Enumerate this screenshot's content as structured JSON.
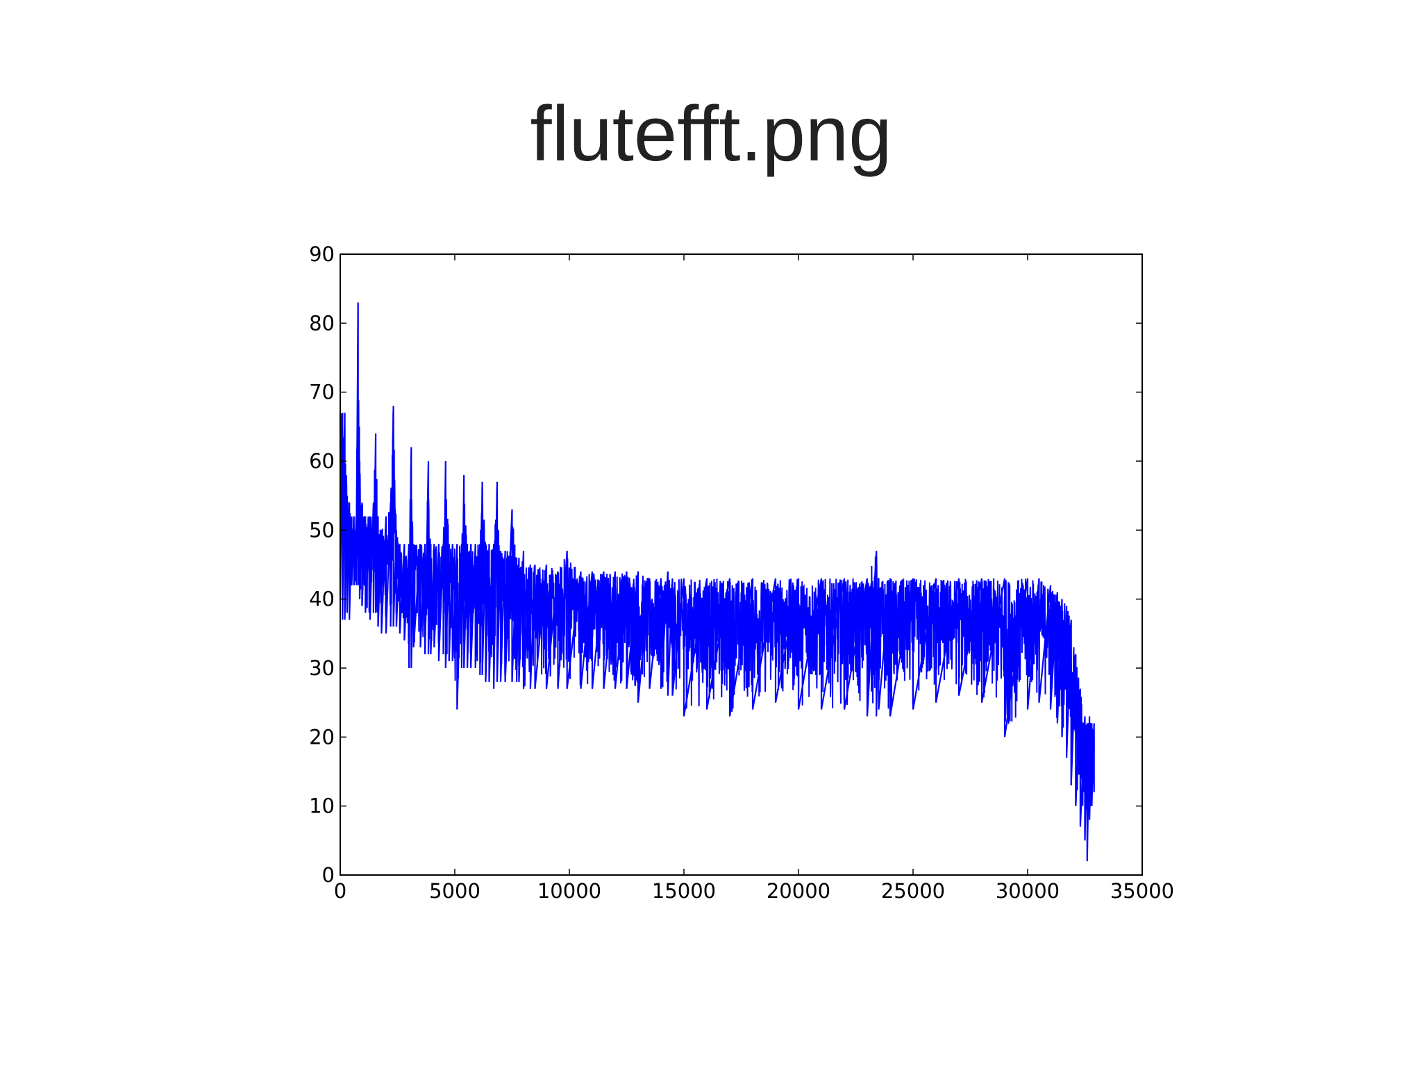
{
  "slide": {
    "title": "flutefft.png"
  },
  "chart_data": {
    "type": "line",
    "title": "",
    "xlabel": "",
    "ylabel": "",
    "xlim": [
      0,
      35000
    ],
    "ylim": [
      0,
      90
    ],
    "x_ticks": [
      0,
      5000,
      10000,
      15000,
      20000,
      25000,
      30000,
      35000
    ],
    "x_tick_labels": [
      "0",
      "5000",
      "10000",
      "15000",
      "20000",
      "25000",
      "30000",
      "35000"
    ],
    "y_ticks": [
      0,
      10,
      20,
      30,
      40,
      50,
      60,
      70,
      80,
      90
    ],
    "y_tick_labels": [
      "0",
      "10",
      "20",
      "30",
      "40",
      "50",
      "60",
      "70",
      "80",
      "90"
    ],
    "grid": false,
    "legend": "none",
    "series_color": "#0000ff",
    "series": [
      {
        "x": [
          0,
          100,
          200,
          300,
          400,
          500,
          600,
          700,
          780,
          850,
          950,
          1100,
          1300,
          1450,
          1550,
          1650,
          1800,
          2000,
          2200,
          2320,
          2450,
          2600,
          2800,
          3000,
          3100,
          3200,
          3500,
          3700,
          3850,
          3950,
          4100,
          4300,
          4500,
          4600,
          4750,
          4900,
          5100,
          5300,
          5400,
          5550,
          5700,
          5900,
          6100,
          6200,
          6350,
          6500,
          6700,
          6850,
          7000,
          7200,
          7500,
          7700,
          7800,
          8000,
          8300,
          8500,
          9000,
          9500,
          9900,
          10500,
          11000,
          11500,
          12000,
          12500,
          13000,
          13500,
          14000,
          14300,
          14500,
          15000,
          16000,
          17000,
          18000,
          19000,
          20000,
          21000,
          22000,
          23000,
          23400,
          23500,
          24000,
          25000,
          26000,
          27000,
          28000,
          29000,
          30000,
          30500,
          31000,
          31300,
          31500,
          31700,
          31900,
          32100,
          32300,
          32500,
          32600,
          32700,
          32800,
          32900
        ],
        "y_high": [
          67,
          67,
          67,
          55,
          54,
          52,
          52,
          52,
          83,
          60,
          54,
          52,
          52,
          54,
          64,
          52,
          50,
          52,
          54,
          68,
          50,
          48,
          48,
          48,
          62,
          48,
          48,
          48,
          60,
          48,
          48,
          48,
          48,
          60,
          48,
          48,
          48,
          48,
          58,
          48,
          48,
          48,
          48,
          57,
          48,
          48,
          48,
          57,
          47,
          47,
          53,
          46,
          46,
          47,
          45,
          45,
          45,
          44,
          47,
          44,
          44,
          44,
          44,
          44,
          44,
          43,
          43,
          44,
          43,
          43,
          43,
          43,
          43,
          43,
          43,
          43,
          43,
          43,
          47,
          43,
          43,
          43,
          43,
          43,
          43,
          43,
          43,
          43,
          42,
          41,
          40,
          39,
          37,
          32,
          27,
          23,
          22,
          23,
          22,
          22
        ],
        "y_low": [
          40,
          37,
          37,
          38,
          37,
          42,
          42,
          42,
          42,
          40,
          39,
          38,
          37,
          38,
          38,
          36,
          35,
          35,
          36,
          36,
          36,
          35,
          34,
          30,
          30,
          33,
          33,
          32,
          32,
          32,
          33,
          31,
          32,
          30,
          31,
          31,
          24,
          30,
          30,
          30,
          30,
          30,
          29,
          29,
          28,
          28,
          27,
          28,
          28,
          28,
          28,
          28,
          28,
          27,
          27,
          27,
          27,
          27,
          27,
          27,
          27,
          27,
          27,
          27,
          25,
          27,
          27,
          26,
          26,
          23,
          24,
          23,
          24,
          25,
          24,
          24,
          24,
          23,
          23,
          24,
          23,
          24,
          25,
          26,
          25,
          20,
          24,
          25,
          24,
          22,
          20,
          17,
          13,
          10,
          7,
          5,
          2,
          8,
          10,
          12
        ]
      }
    ]
  }
}
